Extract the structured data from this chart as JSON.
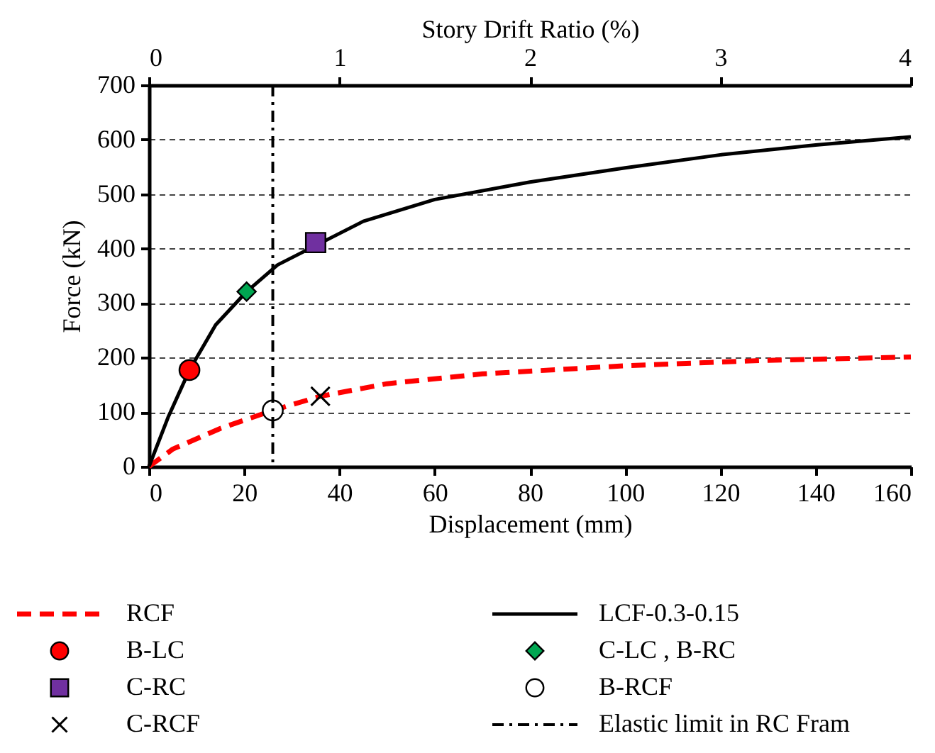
{
  "chart_data": {
    "type": "line",
    "xlabel": "Displacement (mm)",
    "ylabel": "Force (kN)",
    "x2label": "Story Drift Ratio (%)",
    "xlim": [
      0,
      160
    ],
    "xticks": [
      0,
      20,
      40,
      60,
      80,
      100,
      120,
      140,
      160
    ],
    "ylim": [
      0,
      700
    ],
    "yticks": [
      0,
      100,
      200,
      300,
      400,
      500,
      600,
      700
    ],
    "x2lim": [
      0,
      4
    ],
    "x2ticks": [
      0,
      1,
      2,
      3,
      4
    ],
    "grid": "y",
    "legend": "bottom",
    "series": [
      {
        "name": "RCF",
        "color": "#ff0000",
        "line_style": "dashed",
        "x": [
          0,
          5,
          15,
          26,
          36,
          50,
          70,
          100,
          130,
          160
        ],
        "values": [
          0,
          32,
          70,
          103,
          129,
          152,
          170,
          185,
          195,
          201
        ]
      },
      {
        "name": "LCF-0.3-0.15",
        "color": "#000000",
        "line_style": "solid",
        "x": [
          0,
          4,
          8.5,
          14,
          20.5,
          27,
          45,
          60,
          80,
          100,
          120,
          140,
          160
        ],
        "values": [
          0,
          90,
          177,
          260,
          321,
          370,
          450,
          490,
          522,
          548,
          572,
          590,
          605
        ]
      },
      {
        "name": "B-LC",
        "type": "scatter",
        "marker": "circle",
        "color": "#ff0000",
        "x": [
          8.5
        ],
        "values": [
          177
        ]
      },
      {
        "name": "C-LC , B-RC",
        "type": "scatter",
        "marker": "diamond",
        "color": "#00a651",
        "x": [
          20.5
        ],
        "values": [
          321
        ]
      },
      {
        "name": "C-RC",
        "type": "scatter",
        "marker": "square",
        "color": "#7030a0",
        "x": [
          35
        ],
        "values": [
          411
        ]
      },
      {
        "name": "B-RCF",
        "type": "scatter",
        "marker": "circle",
        "color": "#ffffff",
        "x": [
          26
        ],
        "values": [
          103
        ]
      },
      {
        "name": "C-RCF",
        "type": "scatter",
        "marker": "cross",
        "color": "#000000",
        "x": [
          36
        ],
        "values": [
          129
        ]
      }
    ],
    "ref_lines": [
      {
        "axis": "x",
        "value": 26,
        "label": "Elastic limit in RC Fram",
        "color": "#000000",
        "line_style": "dashdot"
      }
    ]
  }
}
